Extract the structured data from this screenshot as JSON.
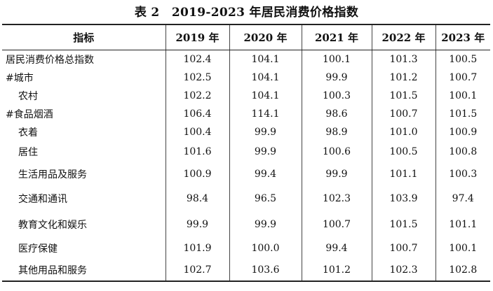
{
  "title": "表 2　2019-2023 年居民消费价格指数",
  "table": {
    "headers": [
      "指标",
      "2019 年",
      "2020 年",
      "2021 年",
      "2022 年",
      "2023 年"
    ],
    "rows": [
      {
        "label": "居民消费价格总指数",
        "values": [
          "102.4",
          "104.1",
          "100.1",
          "101.3",
          "100.5"
        ]
      },
      {
        "label": "#城市",
        "values": [
          "102.5",
          "104.1",
          "99.9",
          "101.2",
          "100.7"
        ]
      },
      {
        "label": "农村",
        "values": [
          "102.2",
          "104.1",
          "100.3",
          "101.5",
          "100.1"
        ]
      },
      {
        "label": "#食品烟酒",
        "values": [
          "106.4",
          "114.1",
          "98.6",
          "100.7",
          "101.5"
        ]
      },
      {
        "label": "衣着",
        "values": [
          "100.4",
          "99.9",
          "98.9",
          "101.0",
          "100.9"
        ]
      },
      {
        "label": "居住",
        "values": [
          "101.6",
          "99.9",
          "100.6",
          "100.5",
          "100.8"
        ]
      },
      {
        "label": "生活用品及服务",
        "values": [
          "100.9",
          "99.4",
          "99.9",
          "101.1",
          "100.3"
        ]
      },
      {
        "label": "交通和通讯",
        "values": [
          "98.4",
          "96.5",
          "102.3",
          "103.9",
          "97.4"
        ]
      },
      {
        "label": "教育文化和娱乐",
        "values": [
          "99.9",
          "99.9",
          "100.7",
          "101.5",
          "101.1"
        ]
      },
      {
        "label": "医疗保健",
        "values": [
          "101.9",
          "100.0",
          "99.4",
          "100.7",
          "100.1"
        ]
      },
      {
        "label": "其他用品和服务",
        "values": [
          "102.7",
          "103.6",
          "101.2",
          "102.3",
          "102.8"
        ]
      }
    ]
  }
}
